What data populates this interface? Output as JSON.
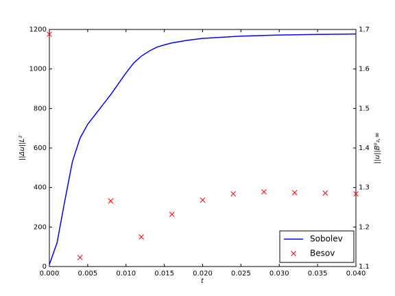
{
  "chart_data": {
    "type": "line",
    "xlabel": "t",
    "ylabel": "||Δu||L²",
    "y2label": "||u||B⁰₂,∞",
    "xlim": [
      0,
      0.04
    ],
    "xticks": [
      {
        "value": 0,
        "label": "0.000"
      },
      {
        "value": 0.005,
        "label": "0.005"
      },
      {
        "value": 0.01,
        "label": "0.010"
      },
      {
        "value": 0.015,
        "label": "0.015"
      },
      {
        "value": 0.02,
        "label": "0.020"
      },
      {
        "value": 0.025,
        "label": "0.025"
      },
      {
        "value": 0.03,
        "label": "0.030"
      },
      {
        "value": 0.035,
        "label": "0.035"
      },
      {
        "value": 0.04,
        "label": "0.040"
      }
    ],
    "ylim": [
      0,
      1200
    ],
    "yticks": [
      0,
      200,
      400,
      600,
      800,
      1000,
      1200
    ],
    "y2lim": [
      1.1,
      1.7
    ],
    "y2ticks": [
      1.1,
      1.2,
      1.3,
      1.4,
      1.5,
      1.6,
      1.7
    ],
    "legend": "lower right",
    "series": [
      {
        "name": "Sobolev",
        "color": "#0000ff",
        "marker": "none",
        "x": [
          0,
          0.001,
          0.002,
          0.003,
          0.004,
          0.005,
          0.006,
          0.007,
          0.008,
          0.009,
          0.01,
          0.011,
          0.012,
          0.013,
          0.014,
          0.015,
          0.016,
          0.018,
          0.02,
          0.025,
          0.03,
          0.035,
          0.04
        ],
        "values": [
          10,
          120,
          330,
          530,
          650,
          720,
          770,
          820,
          870,
          925,
          980,
          1030,
          1065,
          1090,
          1110,
          1122,
          1132,
          1145,
          1155,
          1166,
          1172,
          1175,
          1177
        ]
      },
      {
        "name": "Besov",
        "color": "#ff0000",
        "marker": "x",
        "axis": "y2",
        "x": [
          0,
          0.004,
          0.008,
          0.012,
          0.016,
          0.02,
          0.024,
          0.028,
          0.032,
          0.036,
          0.04
        ],
        "values": [
          1.688,
          1.123,
          1.266,
          1.175,
          1.232,
          1.268,
          1.284,
          1.289,
          1.287,
          1.286,
          1.284
        ]
      }
    ]
  }
}
